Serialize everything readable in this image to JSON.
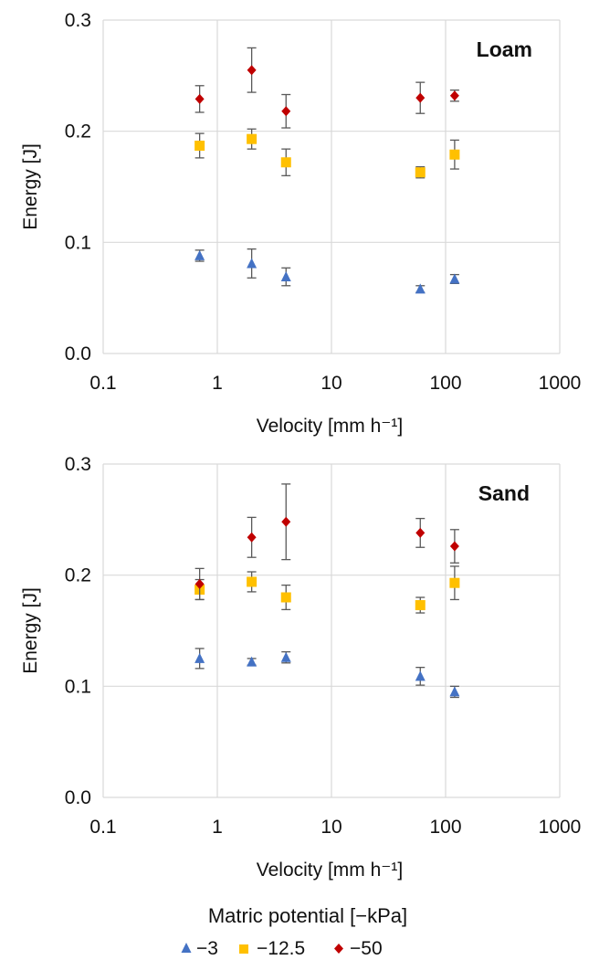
{
  "colors": {
    "grid": "#d9d9d9",
    "error_bar": "#595959",
    "background": "#ffffff"
  },
  "legend": {
    "title": "Matric potential [−kPa]",
    "entries": [
      {
        "label": "−3",
        "marker": "triangle",
        "color": "#4472c4"
      },
      {
        "label": "−12.5",
        "marker": "square",
        "color": "#ffc000"
      },
      {
        "label": "−50",
        "marker": "diamond",
        "color": "#c00000"
      }
    ],
    "placement": "bottom-center"
  },
  "chart_data": [
    {
      "type": "scatter",
      "panel_label": "Loam",
      "xlabel": "Velocity [mm h⁻¹]",
      "ylabel": "Energy [J]",
      "xscale": "log",
      "xlim": [
        0.1,
        1000
      ],
      "ylim": [
        0.0,
        0.3
      ],
      "xticks": [
        "0.1",
        "1",
        "10",
        "100",
        "1000"
      ],
      "yticks": [
        "0.0",
        "0.1",
        "0.2",
        "0.3"
      ],
      "grid": true,
      "series": [
        {
          "name": "−3",
          "marker": "triangle",
          "color": "#4472c4",
          "x": [
            0.7,
            2,
            4,
            60,
            120
          ],
          "y": [
            0.088,
            0.081,
            0.069,
            0.058,
            0.067
          ],
          "err": [
            0.005,
            0.013,
            0.008,
            0.003,
            0.004
          ]
        },
        {
          "name": "−12.5",
          "marker": "square",
          "color": "#ffc000",
          "x": [
            0.7,
            2,
            4,
            60,
            120
          ],
          "y": [
            0.187,
            0.193,
            0.172,
            0.163,
            0.179
          ],
          "err": [
            0.011,
            0.009,
            0.012,
            0.005,
            0.013
          ]
        },
        {
          "name": "−50",
          "marker": "diamond",
          "color": "#c00000",
          "x": [
            0.7,
            2,
            4,
            60,
            120
          ],
          "y": [
            0.229,
            0.255,
            0.218,
            0.23,
            0.232
          ],
          "err": [
            0.012,
            0.02,
            0.015,
            0.014,
            0.005
          ]
        }
      ]
    },
    {
      "type": "scatter",
      "panel_label": "Sand",
      "xlabel": "Velocity [mm h⁻¹]",
      "ylabel": "Energy [J]",
      "xscale": "log",
      "xlim": [
        0.1,
        1000
      ],
      "ylim": [
        0.0,
        0.3
      ],
      "xticks": [
        "0.1",
        "1",
        "10",
        "100",
        "1000"
      ],
      "yticks": [
        "0.0",
        "0.1",
        "0.2",
        "0.3"
      ],
      "grid": true,
      "series": [
        {
          "name": "−3",
          "marker": "triangle",
          "color": "#4472c4",
          "x": [
            0.7,
            2,
            4,
            60,
            120
          ],
          "y": [
            0.125,
            0.122,
            0.126,
            0.109,
            0.095
          ],
          "err": [
            0.009,
            0.003,
            0.005,
            0.008,
            0.005
          ]
        },
        {
          "name": "−12.5",
          "marker": "square",
          "color": "#ffc000",
          "x": [
            0.7,
            2,
            4,
            60,
            120
          ],
          "y": [
            0.187,
            0.194,
            0.18,
            0.173,
            0.193
          ],
          "err": [
            0.009,
            0.009,
            0.011,
            0.007,
            0.015
          ]
        },
        {
          "name": "−50",
          "marker": "diamond",
          "color": "#c00000",
          "x": [
            0.7,
            2,
            4,
            60,
            120
          ],
          "y": [
            0.192,
            0.234,
            0.248,
            0.238,
            0.226
          ],
          "err": [
            0.014,
            0.018,
            0.034,
            0.013,
            0.015
          ]
        }
      ]
    }
  ]
}
